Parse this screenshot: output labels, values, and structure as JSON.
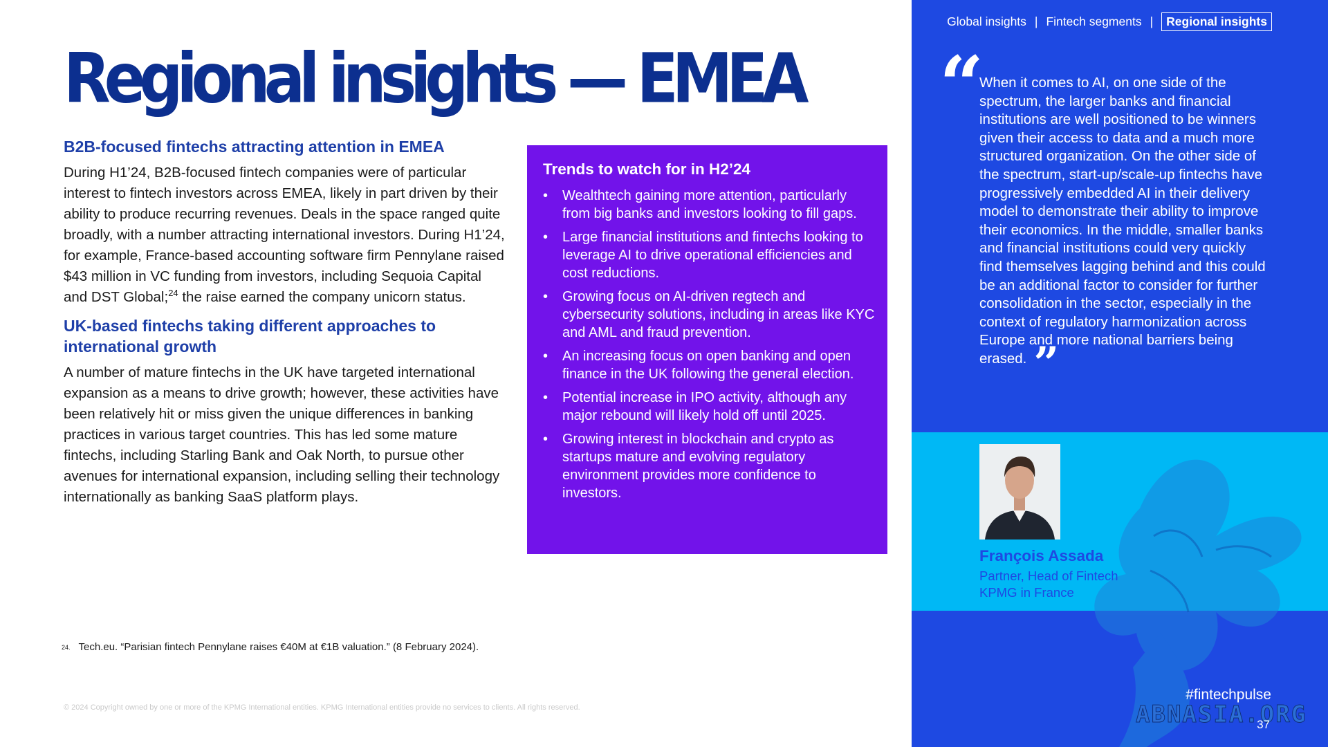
{
  "title": "Regional insights — EMEA",
  "left": {
    "section1": {
      "heading": "B2B-focused fintechs attracting attention in EMEA",
      "body_before_ref": "During H1’24, B2B-focused fintech companies were of particular interest to fintech investors across EMEA, likely in part driven by their ability to produce recurring revenues. Deals in the space ranged quite broadly, with a number attracting international investors. During H1’24, for example, France-based accounting software firm Pennylane raised $43 million in VC funding from investors, including Sequoia Capital and DST Global;",
      "ref": "24",
      "body_after_ref": " the raise earned the company unicorn status."
    },
    "section2": {
      "heading": "UK-based fintechs taking different approaches to international growth",
      "body": "A number of mature fintechs in the UK have targeted international expansion as a means to drive growth; however, these activities have been relatively hit or miss given the unique differences in banking practices in various target countries. This has led some mature fintechs, including Starling Bank and Oak North, to pursue other avenues for international expansion, including selling their technology internationally as banking SaaS platform plays."
    }
  },
  "trends": {
    "title": "Trends to watch for in H2’24",
    "items": [
      "Wealthtech gaining more attention, particularly from big banks and investors looking to fill gaps.",
      "Large financial institutions and fintechs looking to leverage AI to drive operational efficiencies and cost reductions.",
      "Growing focus on AI-driven regtech and cybersecurity solutions, including in areas like KYC and AML and fraud prevention.",
      "An increasing focus on open banking and open finance in the UK following the general election.",
      "Potential increase in IPO activity, although any major rebound will likely hold off until 2025.",
      "Growing interest in blockchain and crypto as startups mature and evolving regulatory environment provides more confidence to investors."
    ]
  },
  "footnote": {
    "number": "24.",
    "text": "Tech.eu. “Parisian fintech Pennylane raises €40M at €1B valuation.” (8 February 2024)."
  },
  "copyright": "© 2024 Copyright owned by one or more of the KPMG International entities. KPMG International entities provide no services to clients. All rights reserved.",
  "nav": {
    "items": [
      "Global insights",
      "Fintech segments",
      "Regional insights"
    ],
    "separator": "|"
  },
  "quote": {
    "open_mark": "“",
    "close_mark": "”",
    "text": "When it comes to AI, on one side of the spectrum, the larger banks and financial institutions are well positioned to be winners given their access to data and a much more structured organization. On the other side of the spectrum, start-up/scale-up fintechs have progressively embedded AI in their delivery model to demonstrate their ability to improve their economics. In the middle, smaller banks and financial institutions could very quickly find themselves lagging behind and this could be an additional factor to consider for further consolidation in the sector, especially in the context of regulatory harmonization across Europe and more national barriers being erased."
  },
  "person": {
    "name": "François Assada",
    "role_line1": "Partner, Head of Fintech",
    "role_line2": "KPMG in France"
  },
  "hashtag": "#fintechpulse",
  "watermark": "ABNASIA.ORG",
  "page_number": "37",
  "colors": {
    "title_blue": "#0c2f8f",
    "heading_blue": "#1e3fa8",
    "trends_purple": "#7213ea",
    "panel_blue": "#1e49e2",
    "band_cyan": "#00b8f5"
  }
}
